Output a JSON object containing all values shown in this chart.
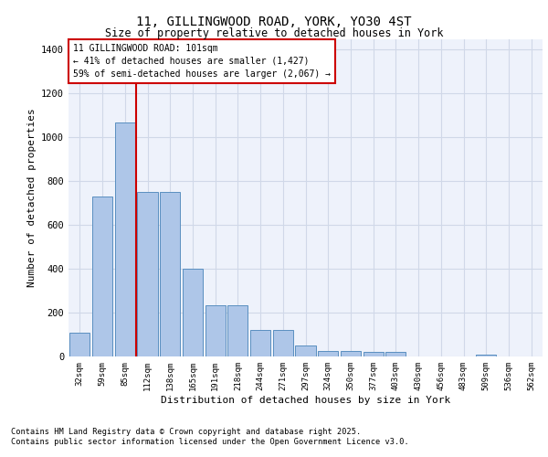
{
  "title1": "11, GILLINGWOOD ROAD, YORK, YO30 4ST",
  "title2": "Size of property relative to detached houses in York",
  "xlabel": "Distribution of detached houses by size in York",
  "ylabel": "Number of detached properties",
  "categories": [
    "32sqm",
    "59sqm",
    "85sqm",
    "112sqm",
    "138sqm",
    "165sqm",
    "191sqm",
    "218sqm",
    "244sqm",
    "271sqm",
    "297sqm",
    "324sqm",
    "350sqm",
    "377sqm",
    "403sqm",
    "430sqm",
    "456sqm",
    "483sqm",
    "509sqm",
    "536sqm",
    "562sqm"
  ],
  "values": [
    110,
    730,
    1070,
    750,
    750,
    400,
    235,
    235,
    120,
    120,
    50,
    25,
    25,
    20,
    20,
    0,
    0,
    0,
    10,
    0,
    0
  ],
  "bar_color": "#aec6e8",
  "bar_edge_color": "#5a8fc0",
  "grid_color": "#d0d8e8",
  "bg_color": "#eef2fb",
  "vline_color": "#cc0000",
  "annotation_text": "11 GILLINGWOOD ROAD: 101sqm\n← 41% of detached houses are smaller (1,427)\n59% of semi-detached houses are larger (2,067) →",
  "annotation_box_color": "#cc0000",
  "ylim": [
    0,
    1450
  ],
  "yticks": [
    0,
    200,
    400,
    600,
    800,
    1000,
    1200,
    1400
  ],
  "footer1": "Contains HM Land Registry data © Crown copyright and database right 2025.",
  "footer2": "Contains public sector information licensed under the Open Government Licence v3.0."
}
